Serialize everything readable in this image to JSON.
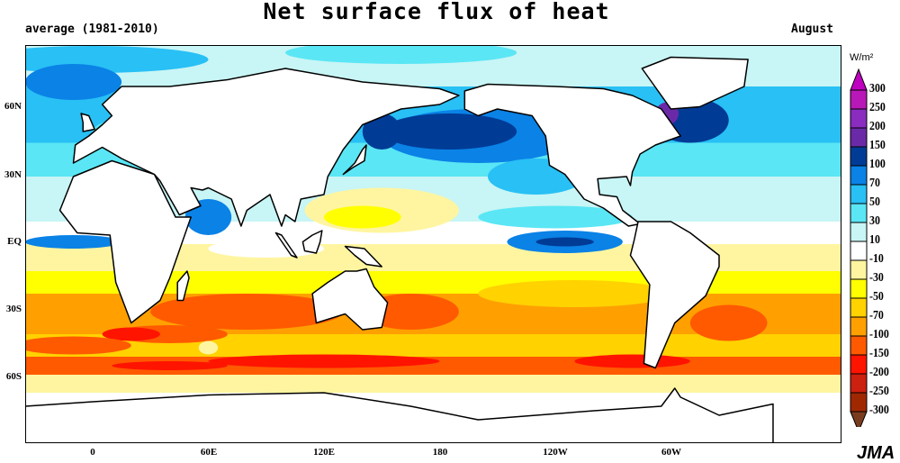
{
  "title": "Net surface flux of heat",
  "period": "average (1981-2010)",
  "month": "August",
  "credit": "JMA",
  "colorbar": {
    "units": "W/m²",
    "labels": [
      "300",
      "250",
      "200",
      "150",
      "100",
      "70",
      "50",
      "30",
      "10",
      "-10",
      "-30",
      "-50",
      "-70",
      "-100",
      "-150",
      "-200",
      "-250",
      "-300"
    ],
    "colors": [
      "#c000c0",
      "#b818b8",
      "#8a2cc0",
      "#6a2aa8",
      "#003c96",
      "#0a82e6",
      "#28c0f5",
      "#5ae6f5",
      "#c8f5f5",
      "#ffffff",
      "#fff5a0",
      "#ffff00",
      "#ffd200",
      "#ffa000",
      "#ff5a00",
      "#ff1400",
      "#cc2010",
      "#a02800",
      "#7a3c1e"
    ]
  },
  "axes": {
    "lat_labels": [
      "60N",
      "30N",
      "EQ",
      "30S",
      "60S"
    ],
    "lon_labels": [
      "0",
      "60E",
      "120E",
      "180",
      "120W",
      "60W"
    ]
  }
}
